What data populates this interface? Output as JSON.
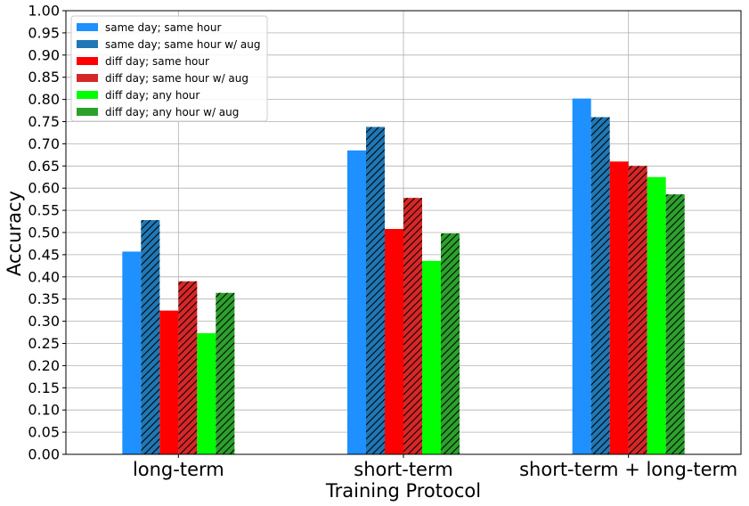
{
  "chart_data": {
    "type": "bar",
    "title": "",
    "xlabel": "Training Protocol",
    "ylabel": "Accuracy",
    "ylim": [
      0,
      1.0
    ],
    "yticks": [
      "0.00",
      "0.05",
      "0.10",
      "0.15",
      "0.20",
      "0.25",
      "0.30",
      "0.35",
      "0.40",
      "0.45",
      "0.50",
      "0.55",
      "0.60",
      "0.65",
      "0.70",
      "0.75",
      "0.80",
      "0.85",
      "0.90",
      "0.95",
      "1.00"
    ],
    "grid": true,
    "legend_position": "top-left",
    "categories": [
      "long-term",
      "short-term",
      "short-term + long-term"
    ],
    "series": [
      {
        "name": "same day; same hour",
        "color": "#1e90ff",
        "hatch": false,
        "values": [
          0.457,
          0.685,
          0.802
        ]
      },
      {
        "name": "same day; same hour w/ aug",
        "color": "#1f77b4",
        "hatch": true,
        "values": [
          0.528,
          0.738,
          0.76
        ]
      },
      {
        "name": "diff day; same hour",
        "color": "#ff0000",
        "hatch": false,
        "values": [
          0.324,
          0.508,
          0.66
        ]
      },
      {
        "name": "diff day; same hour w/ aug",
        "color": "#d62728",
        "hatch": true,
        "values": [
          0.39,
          0.578,
          0.65
        ]
      },
      {
        "name": "diff day; any hour",
        "color": "#00ff00",
        "hatch": false,
        "values": [
          0.273,
          0.436,
          0.625
        ]
      },
      {
        "name": "diff day; any hour w/ aug",
        "color": "#2ca02c",
        "hatch": true,
        "values": [
          0.364,
          0.498,
          0.586
        ]
      }
    ]
  }
}
